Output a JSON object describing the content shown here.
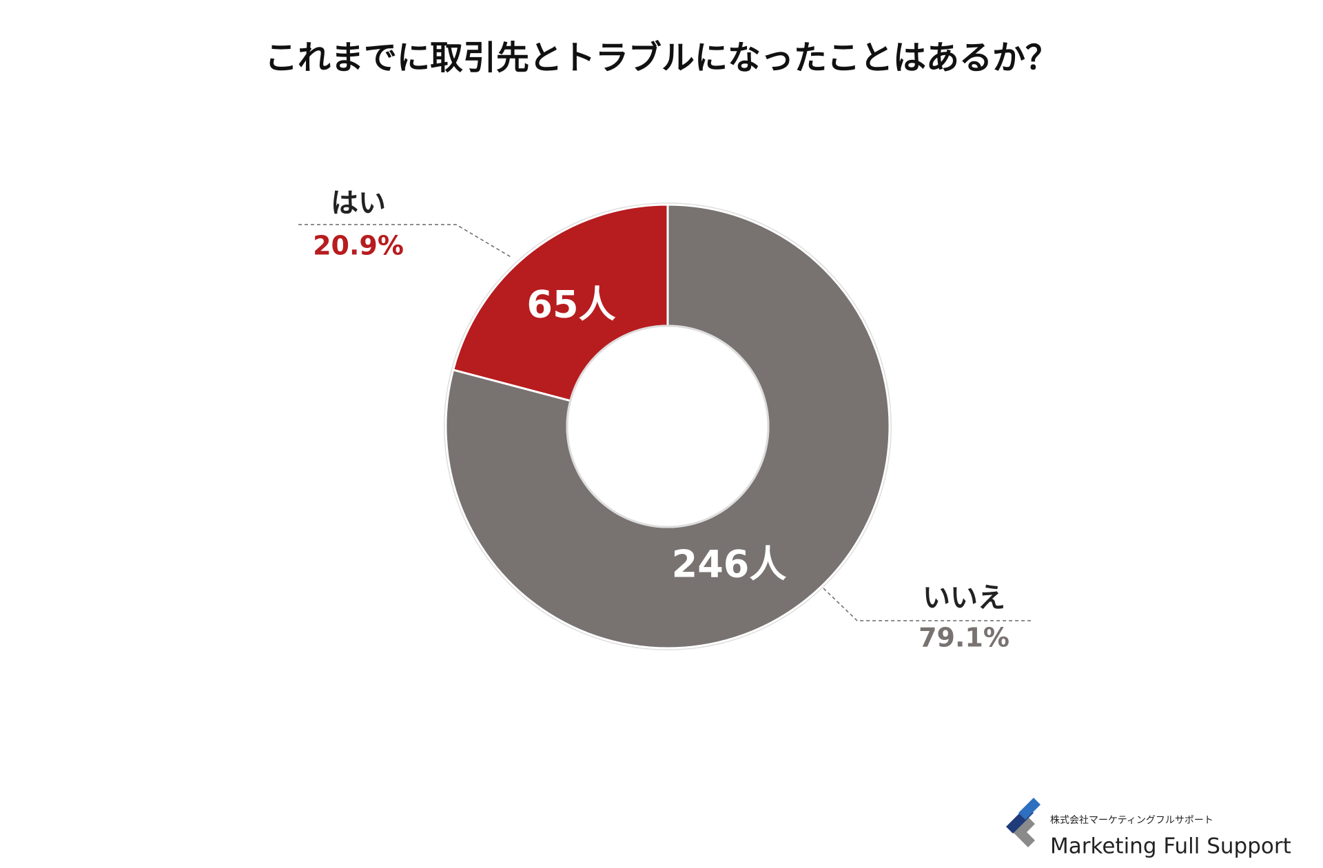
{
  "chart_data": {
    "type": "donut",
    "title": "これまでに取引先とトラブルになったことはあるか？",
    "categories": [
      "はい",
      "いいえ"
    ],
    "values": [
      20.9,
      79.1
    ],
    "value_labels": [
      "20.9%",
      "79.1%"
    ],
    "counts": [
      65,
      246
    ],
    "count_labels": [
      "65人",
      "246人"
    ],
    "colors": [
      "#b71c1f",
      "#787271"
    ]
  },
  "logo": {
    "company": "株式会社マーケティングフルサポート",
    "name": "Marketing Full Support"
  }
}
